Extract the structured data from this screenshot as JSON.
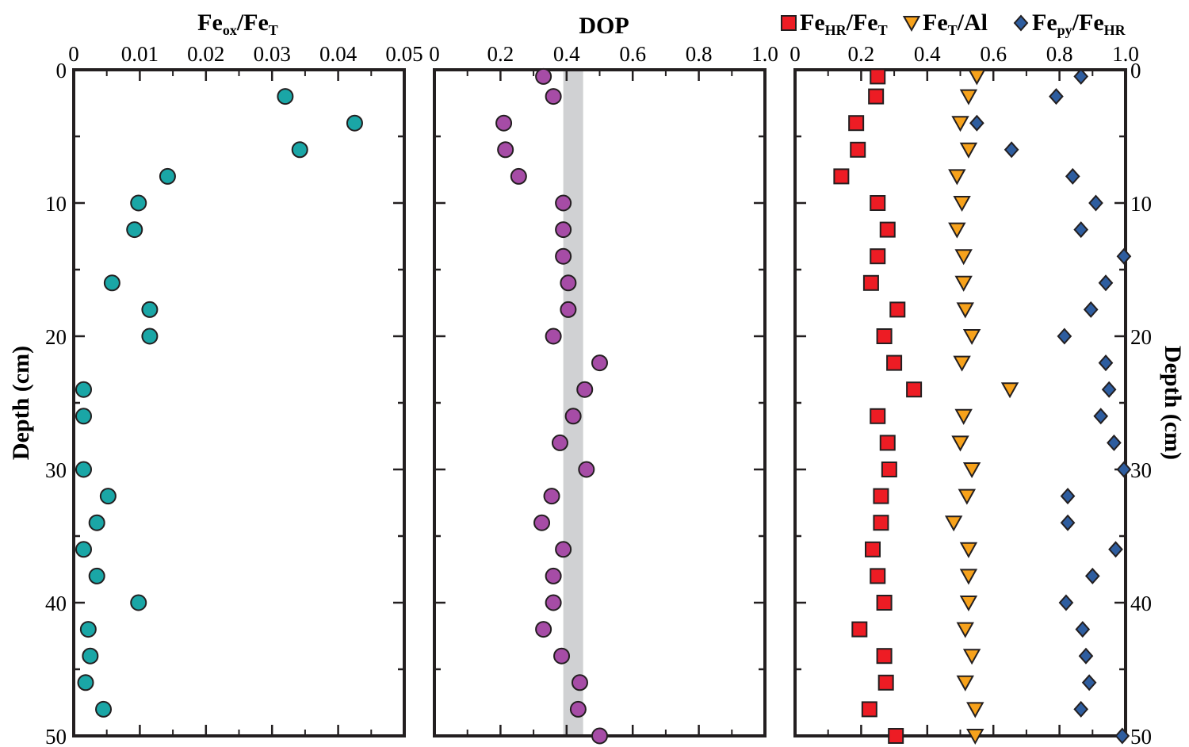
{
  "chart_data": [
    {
      "type": "scatter",
      "xlabel": {
        "main": "Fe",
        "sub1": "ox",
        "mid": "/Fe",
        "sub2": "T"
      },
      "ylabel": "Depth (cm)",
      "xlim": [
        0,
        0.05
      ],
      "ylim": [
        0,
        50
      ],
      "xticks": [
        "0",
        "0.01",
        "0.02",
        "0.03",
        "0.04",
        "0.05"
      ],
      "yticks": [
        "0",
        "10",
        "20",
        "30",
        "40",
        "50"
      ],
      "series": [
        {
          "marker": "circle",
          "color": "#1aa6a6",
          "points": [
            [
              0.032,
              2
            ],
            [
              0.0425,
              4
            ],
            [
              0.0342,
              6
            ],
            [
              0.0142,
              8
            ],
            [
              0.0098,
              10
            ],
            [
              0.0092,
              12
            ],
            [
              0.0058,
              16
            ],
            [
              0.0115,
              18
            ],
            [
              0.0115,
              20
            ],
            [
              0.0015,
              24
            ],
            [
              0.0015,
              26
            ],
            [
              0.0015,
              30
            ],
            [
              0.0052,
              32
            ],
            [
              0.0035,
              34
            ],
            [
              0.0015,
              36
            ],
            [
              0.0035,
              38
            ],
            [
              0.0098,
              40
            ],
            [
              0.0022,
              42
            ],
            [
              0.0025,
              44
            ],
            [
              0.0018,
              46
            ],
            [
              0.0045,
              48
            ]
          ]
        }
      ]
    },
    {
      "type": "scatter",
      "xlabel": "DOP",
      "xlim": [
        0,
        1.0
      ],
      "ylim": [
        0,
        50
      ],
      "xticks": [
        "0",
        "0.2",
        "0.4",
        "0.6",
        "0.8",
        "1.0"
      ],
      "shaded_band": {
        "from": 0.39,
        "to": 0.45,
        "color": "#d0d1d3"
      },
      "series": [
        {
          "marker": "circle",
          "color": "#a64ca6",
          "points": [
            [
              0.33,
              0.5
            ],
            [
              0.36,
              2
            ],
            [
              0.21,
              4
            ],
            [
              0.215,
              6
            ],
            [
              0.255,
              8
            ],
            [
              0.39,
              10
            ],
            [
              0.39,
              12
            ],
            [
              0.39,
              14
            ],
            [
              0.405,
              16
            ],
            [
              0.405,
              18
            ],
            [
              0.36,
              20
            ],
            [
              0.5,
              22
            ],
            [
              0.455,
              24
            ],
            [
              0.42,
              26
            ],
            [
              0.38,
              28
            ],
            [
              0.46,
              30
            ],
            [
              0.355,
              32
            ],
            [
              0.325,
              34
            ],
            [
              0.39,
              36
            ],
            [
              0.36,
              38
            ],
            [
              0.36,
              40
            ],
            [
              0.33,
              42
            ],
            [
              0.385,
              44
            ],
            [
              0.44,
              46
            ],
            [
              0.435,
              48
            ],
            [
              0.5,
              50
            ]
          ]
        }
      ]
    },
    {
      "type": "scatter",
      "ylabel": "Depth (cm)",
      "xlim": [
        0,
        1.0
      ],
      "ylim": [
        0,
        50
      ],
      "xticks": [
        "0",
        "0.2",
        "0.4",
        "0.6",
        "0.8",
        "1.0"
      ],
      "yticks": [
        "0",
        "10",
        "20",
        "30",
        "40",
        "50"
      ],
      "series": [
        {
          "name": "FeHR/FeT",
          "legend": {
            "main": "Fe",
            "sub1": "HR",
            "mid": "/Fe",
            "sub2": "T"
          },
          "marker": "square",
          "color": "#ed1c24",
          "points": [
            [
              0.25,
              0.5
            ],
            [
              0.245,
              2
            ],
            [
              0.185,
              4
            ],
            [
              0.19,
              6
            ],
            [
              0.14,
              8
            ],
            [
              0.25,
              10
            ],
            [
              0.28,
              12
            ],
            [
              0.25,
              14
            ],
            [
              0.23,
              16
            ],
            [
              0.31,
              18
            ],
            [
              0.27,
              20
            ],
            [
              0.3,
              22
            ],
            [
              0.36,
              24
            ],
            [
              0.25,
              26
            ],
            [
              0.28,
              28
            ],
            [
              0.285,
              30
            ],
            [
              0.26,
              32
            ],
            [
              0.26,
              34
            ],
            [
              0.235,
              36
            ],
            [
              0.25,
              38
            ],
            [
              0.27,
              40
            ],
            [
              0.195,
              42
            ],
            [
              0.27,
              44
            ],
            [
              0.275,
              46
            ],
            [
              0.225,
              48
            ],
            [
              0.305,
              50
            ]
          ]
        },
        {
          "name": "FeT/Al",
          "legend": {
            "main": "Fe",
            "sub1": "T",
            "mid": "/Al",
            "sub2": ""
          },
          "marker": "triangle-down",
          "color": "#f7a21b",
          "points": [
            [
              0.55,
              0.5
            ],
            [
              0.525,
              2
            ],
            [
              0.5,
              4
            ],
            [
              0.525,
              6
            ],
            [
              0.49,
              8
            ],
            [
              0.505,
              10
            ],
            [
              0.49,
              12
            ],
            [
              0.51,
              14
            ],
            [
              0.51,
              16
            ],
            [
              0.515,
              18
            ],
            [
              0.535,
              20
            ],
            [
              0.505,
              22
            ],
            [
              0.65,
              24
            ],
            [
              0.51,
              26
            ],
            [
              0.5,
              28
            ],
            [
              0.535,
              30
            ],
            [
              0.52,
              32
            ],
            [
              0.48,
              34
            ],
            [
              0.525,
              36
            ],
            [
              0.525,
              38
            ],
            [
              0.525,
              40
            ],
            [
              0.515,
              42
            ],
            [
              0.535,
              44
            ],
            [
              0.515,
              46
            ],
            [
              0.545,
              48
            ],
            [
              0.545,
              50
            ]
          ]
        },
        {
          "name": "Fepy/FeHR",
          "legend": {
            "main": "Fe",
            "sub1": "py",
            "mid": "/Fe",
            "sub2": "HR"
          },
          "marker": "diamond",
          "color": "#2e5d9f",
          "points": [
            [
              0.865,
              0.5
            ],
            [
              0.79,
              2
            ],
            [
              0.55,
              4
            ],
            [
              0.655,
              6
            ],
            [
              0.84,
              8
            ],
            [
              0.91,
              10
            ],
            [
              0.865,
              12
            ],
            [
              0.995,
              14
            ],
            [
              0.94,
              16
            ],
            [
              0.895,
              18
            ],
            [
              0.815,
              20
            ],
            [
              0.94,
              22
            ],
            [
              0.95,
              24
            ],
            [
              0.925,
              26
            ],
            [
              0.965,
              28
            ],
            [
              0.995,
              30
            ],
            [
              0.825,
              32
            ],
            [
              0.825,
              34
            ],
            [
              0.97,
              36
            ],
            [
              0.9,
              38
            ],
            [
              0.82,
              40
            ],
            [
              0.87,
              42
            ],
            [
              0.88,
              44
            ],
            [
              0.89,
              46
            ],
            [
              0.865,
              48
            ],
            [
              0.99,
              50
            ]
          ]
        }
      ]
    }
  ]
}
